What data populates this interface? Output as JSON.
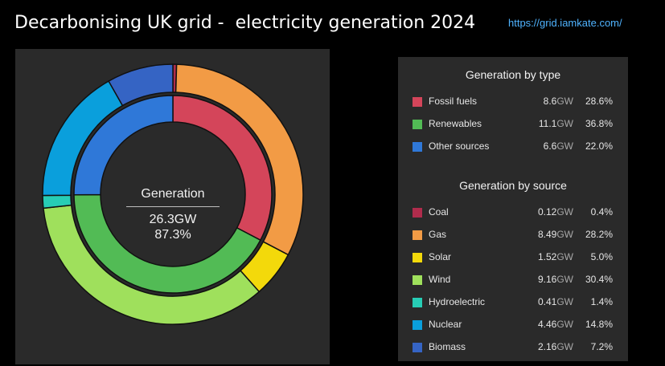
{
  "header": {
    "title": "Decarbonising UK grid -  electricity generation 2024",
    "link": "https://grid.iamkate.com/"
  },
  "center": {
    "label": "Generation",
    "total": "26.3GW",
    "percent": "87.3%"
  },
  "legend": {
    "type_title": "Generation by type",
    "source_title": "Generation by source",
    "unit": "GW"
  },
  "chart_data": {
    "type": "pie",
    "unit": "GW",
    "by_type": [
      {
        "name": "Fossil fuels",
        "value": 8.6,
        "value_label": "8.6",
        "percent": "28.6%",
        "color": "#d4455a"
      },
      {
        "name": "Renewables",
        "value": 11.1,
        "value_label": "11.1",
        "percent": "36.8%",
        "color": "#52bb55"
      },
      {
        "name": "Other sources",
        "value": 6.6,
        "value_label": "6.6",
        "percent": "22.0%",
        "color": "#2f78d8"
      }
    ],
    "by_source": [
      {
        "name": "Coal",
        "value": 0.12,
        "value_label": "0.12",
        "percent": "0.4%",
        "color": "#b02c4c"
      },
      {
        "name": "Gas",
        "value": 8.49,
        "value_label": "8.49",
        "percent": "28.2%",
        "color": "#f29b45"
      },
      {
        "name": "Solar",
        "value": 1.52,
        "value_label": "1.52",
        "percent": "5.0%",
        "color": "#f3d90b"
      },
      {
        "name": "Wind",
        "value": 9.16,
        "value_label": "9.16",
        "percent": "30.4%",
        "color": "#9fe05c"
      },
      {
        "name": "Hydroelectric",
        "value": 0.41,
        "value_label": "0.41",
        "percent": "1.4%",
        "color": "#27cdb5"
      },
      {
        "name": "Nuclear",
        "value": 4.46,
        "value_label": "4.46",
        "percent": "14.8%",
        "color": "#0a9fdc"
      },
      {
        "name": "Biomass",
        "value": 2.16,
        "value_label": "2.16",
        "percent": "7.2%",
        "color": "#3564c4"
      }
    ]
  }
}
